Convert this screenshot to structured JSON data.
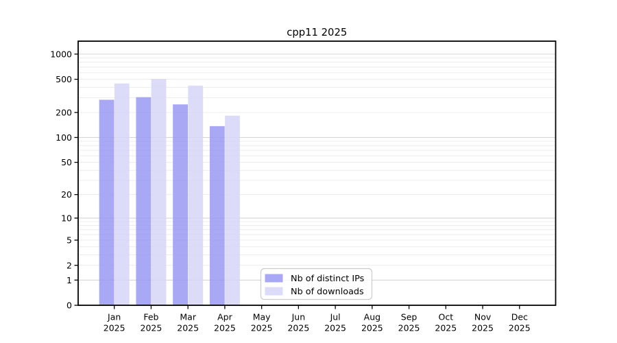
{
  "chart_data": {
    "type": "bar",
    "title": "cpp11 2025",
    "scale": "log1p",
    "ylabel": "",
    "xlabel": "",
    "ylim": [
      0,
      1428
    ],
    "y_ticks": [
      0,
      1,
      2,
      5,
      10,
      20,
      50,
      100,
      200,
      500,
      1000
    ],
    "grid": "on",
    "legend_position": "bottom-center",
    "categories": [
      {
        "month": "Jan",
        "year": "2025"
      },
      {
        "month": "Feb",
        "year": "2025"
      },
      {
        "month": "Mar",
        "year": "2025"
      },
      {
        "month": "Apr",
        "year": "2025"
      },
      {
        "month": "May",
        "year": "2025"
      },
      {
        "month": "Jun",
        "year": "2025"
      },
      {
        "month": "Jul",
        "year": "2025"
      },
      {
        "month": "Aug",
        "year": "2025"
      },
      {
        "month": "Sep",
        "year": "2025"
      },
      {
        "month": "Oct",
        "year": "2025"
      },
      {
        "month": "Nov",
        "year": "2025"
      },
      {
        "month": "Dec",
        "year": "2025"
      }
    ],
    "series": [
      {
        "name": "Nb of distinct IPs",
        "color": "#9999f2",
        "values": [
          284,
          305,
          250,
          137,
          null,
          null,
          null,
          null,
          null,
          null,
          null,
          null
        ]
      },
      {
        "name": "Nb of downloads",
        "color": "#d6d6f8",
        "values": [
          445,
          505,
          420,
          183,
          null,
          null,
          null,
          null,
          null,
          null,
          null,
          null
        ]
      }
    ]
  },
  "colors": {
    "background": "#ffffff",
    "grid_minor": "#ececec",
    "grid_major": "#d5d5d5",
    "axis": "#000000",
    "legend_border": "#cccccc",
    "legend_background": "#ffffff",
    "bar_ips": "#9999f2",
    "bar_downloads": "#d6d6f8"
  }
}
